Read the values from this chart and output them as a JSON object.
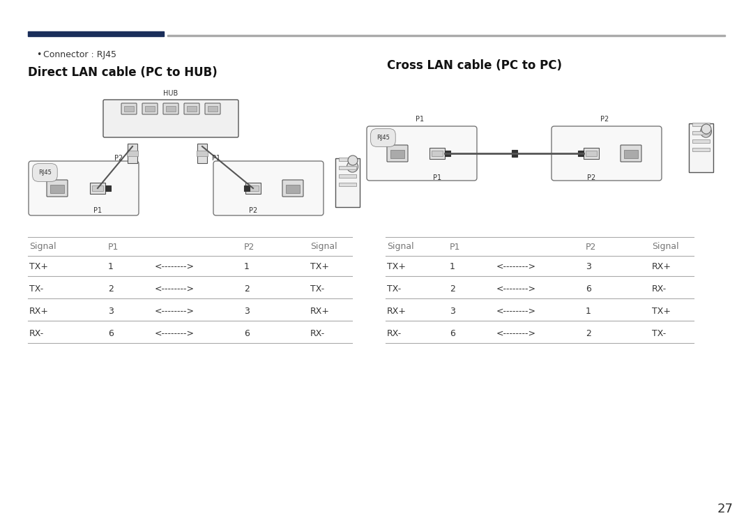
{
  "bg_color": "#ffffff",
  "header_bar_color_left": "#1a2e5a",
  "header_bar_color_right": "#cccccc",
  "bullet_text": "Connector : RJ45",
  "left_title": "Direct LAN cable (PC to HUB)",
  "right_title": "Cross LAN cable (PC to PC)",
  "page_number": "27",
  "left_table_header": [
    "Signal",
    "P1",
    "",
    "P2",
    "Signal"
  ],
  "left_table_rows": [
    [
      "TX+",
      "1",
      "<-------->",
      "1",
      "TX+"
    ],
    [
      "TX-",
      "2",
      "<-------->",
      "2",
      "TX-"
    ],
    [
      "RX+",
      "3",
      "<-------->",
      "3",
      "RX+"
    ],
    [
      "RX-",
      "6",
      "<-------->",
      "6",
      "RX-"
    ]
  ],
  "right_table_header": [
    "Signal",
    "P1",
    "",
    "P2",
    "Signal"
  ],
  "right_table_rows": [
    [
      "TX+",
      "1",
      "<-------->",
      "3",
      "RX+"
    ],
    [
      "TX-",
      "2",
      "<-------->",
      "6",
      "RX-"
    ],
    [
      "RX+",
      "3",
      "<-------->",
      "1",
      "TX+"
    ],
    [
      "RX-",
      "6",
      "<-------->",
      "2",
      "TX-"
    ]
  ],
  "text_color": "#333333",
  "line_color": "#aaaaaa",
  "table_text_size": 9,
  "title_text_size": 12,
  "bullet_text_size": 9
}
